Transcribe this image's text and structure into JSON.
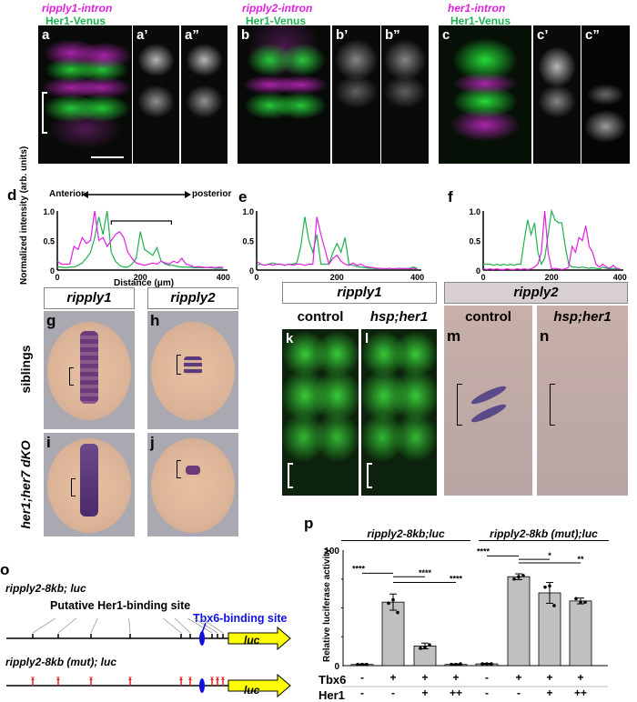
{
  "panels_top": {
    "a": {
      "label": "a",
      "label1": "a’",
      "label2": "a”",
      "probe": "ripply1-intron",
      "reporter": "Her1-Venus"
    },
    "b": {
      "label": "b",
      "label1": "b’",
      "label2": "b”",
      "probe": "ripply2-intron",
      "reporter": "Her1-Venus"
    },
    "c": {
      "label": "c",
      "label1": "c’",
      "label2": "c”",
      "probe": "her1-intron",
      "reporter": "Her1-Venus"
    }
  },
  "colors": {
    "magenta": "#e020e0",
    "green": "#1fb050",
    "tbx6": "#1010e0",
    "luc": "#ffff00",
    "mutation": "#e02020"
  },
  "profiles": {
    "direction_left": "Anterior",
    "direction_right": "posterior",
    "ylabel": "Normalized intensity (arb. units)",
    "xlabel": "Distance (μm)"
  },
  "chart_data": [
    {
      "type": "line",
      "panel": "d",
      "xlabel": "Distance (μm)",
      "ylabel": "Normalized intensity (arb. units)",
      "xlim": [
        0,
        410
      ],
      "ylim": [
        0,
        1
      ],
      "xticks": [
        "0",
        "200",
        "400"
      ],
      "yticks": [
        "0",
        "0.5",
        "1.0"
      ],
      "x_step": 10,
      "series": [
        {
          "color": "#1fb050",
          "values": [
            0.05,
            0.05,
            0.04,
            0.05,
            0.05,
            0.08,
            0.12,
            0.2,
            0.3,
            0.55,
            0.9,
            0.6,
            1.0,
            0.3,
            0.15,
            0.08,
            0.05,
            0.05,
            0.1,
            0.2,
            0.65,
            0.35,
            0.3,
            0.25,
            0.38,
            0.15,
            0.1,
            0.08,
            0.08,
            0.06,
            0.05,
            0.05,
            0.05,
            0.04,
            0.04,
            0.04,
            0.04,
            0.04,
            0.03,
            0.03,
            0.03
          ]
        },
        {
          "color": "#e020e0",
          "values": [
            0.15,
            0.1,
            0.1,
            0.1,
            0.4,
            0.35,
            0.55,
            0.45,
            0.5,
            1.0,
            0.5,
            0.55,
            0.4,
            0.5,
            0.6,
            0.65,
            0.55,
            0.3,
            0.2,
            0.12,
            0.1,
            0.08,
            0.1,
            0.12,
            0.1,
            0.15,
            0.12,
            0.1,
            0.15,
            0.12,
            0.2,
            0.1,
            0.08,
            0.05,
            0.06,
            0.05,
            0.04,
            0.05,
            0.04,
            0.05,
            0.04
          ]
        }
      ]
    },
    {
      "type": "line",
      "panel": "e",
      "xlim": [
        0,
        410
      ],
      "ylim": [
        0,
        1
      ],
      "xticks": [
        "0",
        "200",
        "400"
      ],
      "yticks": [
        "0",
        "0.5",
        "1.0"
      ],
      "x_step": 10,
      "series": [
        {
          "color": "#1fb050",
          "values": [
            0.08,
            0.1,
            0.08,
            0.1,
            0.12,
            0.1,
            0.1,
            0.08,
            0.1,
            0.1,
            0.12,
            0.4,
            0.9,
            0.5,
            0.3,
            0.6,
            0.1,
            0.1,
            0.1,
            0.3,
            0.45,
            0.3,
            0.55,
            0.1,
            0.08,
            0.06,
            0.05,
            0.04,
            0.03,
            0.03,
            0.02,
            0.03,
            0.02,
            0.03,
            0.02,
            0.03,
            0.03,
            0.02,
            0.03,
            0.05,
            0.03
          ]
        },
        {
          "color": "#e020e0",
          "values": [
            0.15,
            0.1,
            0.08,
            0.1,
            0.08,
            0.1,
            0.1,
            0.08,
            0.1,
            0.08,
            0.1,
            0.1,
            0.08,
            0.1,
            0.1,
            0.9,
            0.6,
            0.35,
            0.1,
            0.2,
            0.25,
            0.15,
            0.1,
            0.08,
            0.12,
            0.08,
            0.1,
            0.06,
            0.05,
            0.04,
            0.03,
            0.03,
            0.02,
            0.03,
            0.02,
            0.03,
            0.02,
            0.03,
            0.02,
            0.03,
            0.02
          ]
        }
      ]
    },
    {
      "type": "line",
      "panel": "f",
      "xlim": [
        0,
        410
      ],
      "ylim": [
        0,
        1
      ],
      "xticks": [
        "0",
        "200",
        "400"
      ],
      "yticks": [
        "0",
        "0.5",
        "1.0"
      ],
      "x_step": 10,
      "series": [
        {
          "color": "#1fb050",
          "values": [
            0.1,
            0.1,
            0.1,
            0.08,
            0.1,
            0.08,
            0.1,
            0.08,
            0.1,
            0.08,
            0.1,
            0.1,
            0.5,
            0.85,
            0.6,
            0.8,
            0.3,
            0.1,
            0.2,
            0.6,
            1.0,
            0.85,
            0.8,
            0.8,
            0.4,
            0.1,
            0.05,
            0.05,
            0.04,
            0.05,
            0.04,
            0.03,
            0.04,
            0.03,
            0.02,
            0.05,
            0.03,
            0.02,
            0.03,
            0.02,
            0.02
          ]
        },
        {
          "color": "#e020e0",
          "values": [
            0.02,
            0.01,
            0.02,
            0.01,
            0.02,
            0.01,
            0.01,
            0.02,
            0.01,
            0.01,
            0.02,
            0.01,
            0.02,
            0.01,
            0.02,
            0.05,
            0.1,
            0.3,
            1.0,
            0.3,
            0.02,
            0.03,
            0.02,
            0.01,
            0.02,
            0.05,
            0.4,
            0.3,
            0.55,
            0.5,
            0.75,
            0.4,
            0.3,
            0.1,
            0.05,
            0.1,
            0.05,
            0.03,
            0.08,
            0.03,
            0.02
          ]
        }
      ]
    },
    {
      "type": "bar",
      "panel": "p",
      "ylabel": "Relative luciferase activity",
      "ylim": [
        0,
        100
      ],
      "yticks": [
        "0",
        "100"
      ],
      "groups": [
        "ripply2-8kb;luc",
        "ripply2-8kb (mut);luc"
      ],
      "rows": [
        {
          "label": "Tbx6",
          "values": [
            "-",
            "+",
            "+",
            "+",
            "-",
            "+",
            "+",
            "+"
          ]
        },
        {
          "label": "Her1",
          "values": [
            "-",
            "-",
            "+",
            "++",
            "-",
            "-",
            "+",
            "++"
          ]
        }
      ],
      "values": [
        1,
        55,
        17,
        1,
        1.5,
        77,
        63,
        56
      ],
      "errors": [
        0.5,
        7,
        2.5,
        0.5,
        0.5,
        2.5,
        9,
        2.5
      ],
      "points": [
        [
          1,
          1,
          1
        ],
        [
          54,
          57,
          46
        ],
        [
          15,
          16,
          18
        ],
        [
          1,
          1,
          1.5
        ],
        [
          1.5,
          1.5,
          1.5
        ],
        [
          75,
          77,
          78
        ],
        [
          68,
          69,
          52
        ],
        [
          58,
          55,
          55
        ]
      ],
      "significance": [
        {
          "from": 0,
          "to": 1,
          "label": "****"
        },
        {
          "from": 1,
          "to": 2,
          "label": "****"
        },
        {
          "from": 1,
          "to": 3,
          "label": "****"
        },
        {
          "from": 4,
          "to": 5,
          "label": "****"
        },
        {
          "from": 5,
          "to": 6,
          "label": "*"
        },
        {
          "from": 5,
          "to": 7,
          "label": "**"
        }
      ]
    }
  ],
  "panels_ish": {
    "g": "g",
    "h": "h",
    "i": "i",
    "j": "j",
    "gene1": "ripply1",
    "gene2": "ripply2",
    "row1": "siblings",
    "row2": "her1;her7 dKO"
  },
  "panels_kl": {
    "k": "k",
    "l": "l",
    "gene": "ripply1",
    "control": "control",
    "hsp": "hsp;her1"
  },
  "panels_mn": {
    "m": "m",
    "n": "n",
    "gene": "ripply2",
    "control": "control",
    "hsp": "hsp;her1"
  },
  "panel_o": {
    "label": "o",
    "construct1": "ripply2-8kb; luc",
    "construct2": "ripply2-8kb (mut); luc",
    "her1_site": "Putative Her1-binding site",
    "tbx6_site": "Tbx6-binding site",
    "reporter": "luc"
  },
  "panel_p": {
    "label": "p",
    "group1": "ripply2-8kb;luc",
    "group2": "ripply2-8kb (mut);luc",
    "ylabel": "Relative luciferase activity",
    "tbx6": "Tbx6",
    "her1": "Her1"
  }
}
